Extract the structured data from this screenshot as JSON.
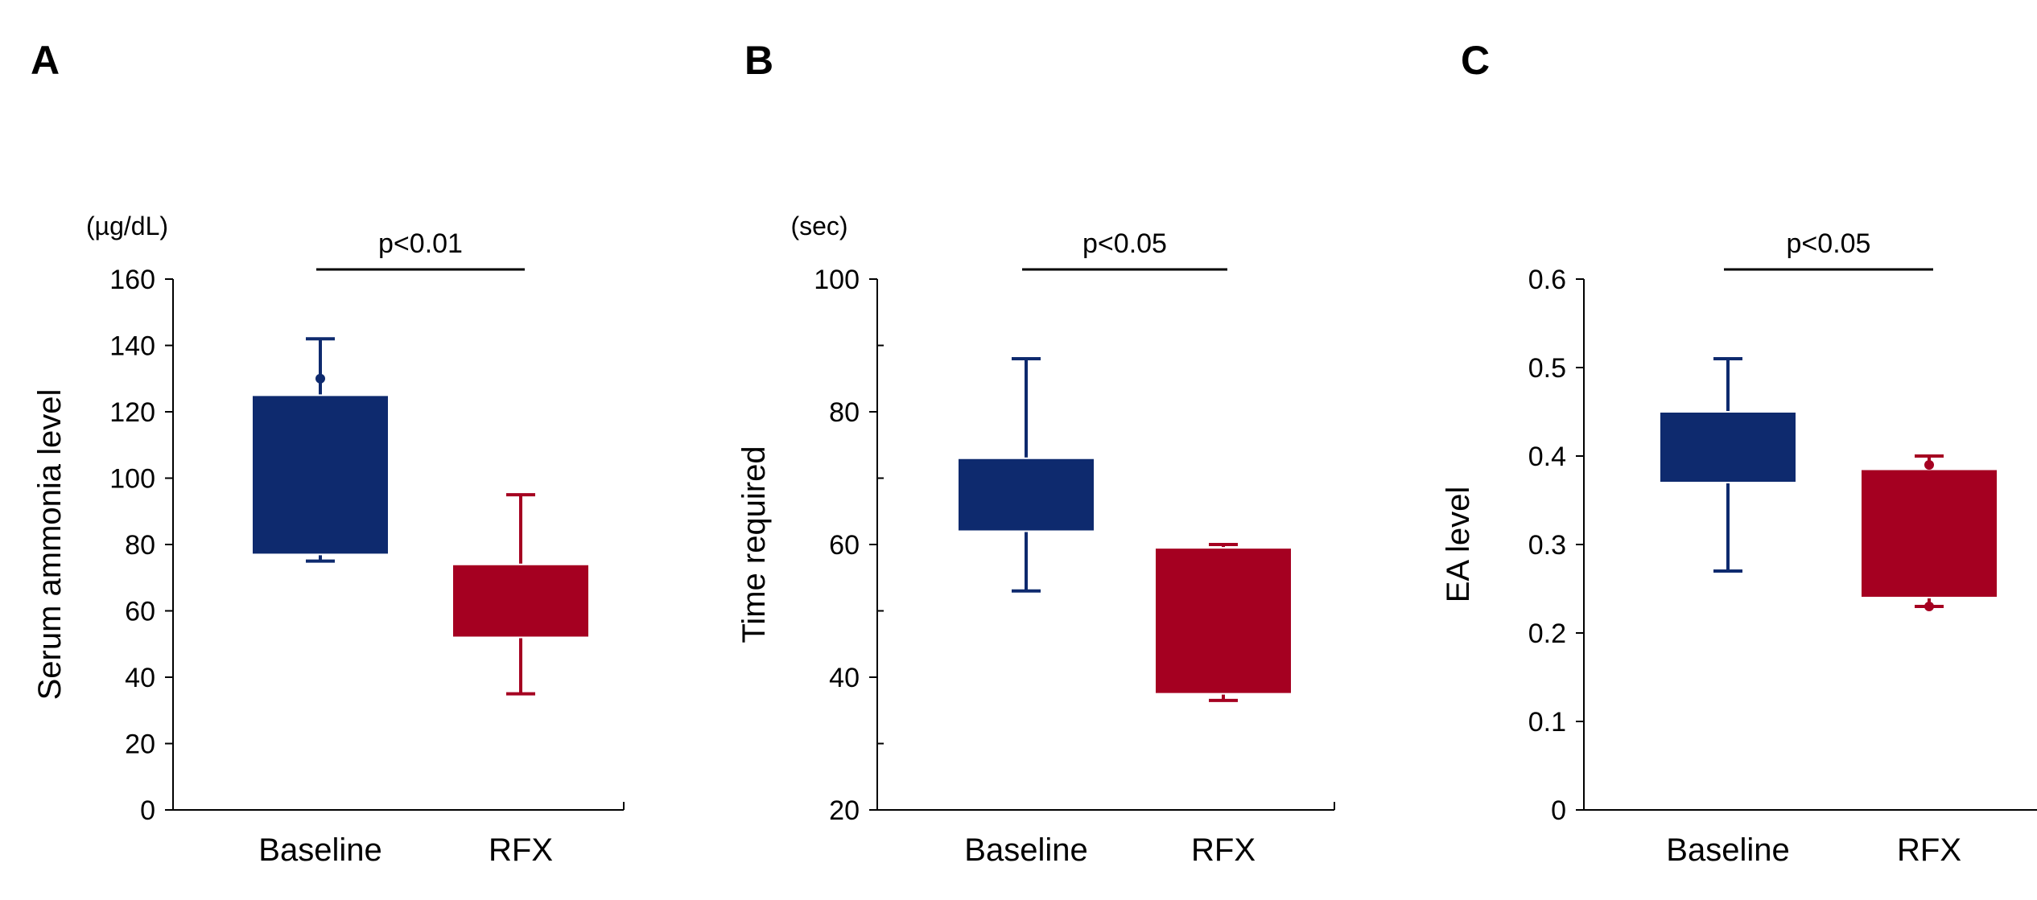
{
  "colors": {
    "baseline": "#0e2a6e",
    "rfx": "#a50021",
    "axis": "#000000"
  },
  "chart_data": [
    {
      "panel": "A",
      "type": "box",
      "unit_label": "(µg/dL)",
      "ylabel": "Serum ammonia level",
      "ylim": [
        0,
        160
      ],
      "yticks": [
        0,
        20,
        40,
        60,
        80,
        100,
        120,
        140,
        160
      ],
      "minor_ticks": false,
      "categories": [
        "Baseline",
        "RFX"
      ],
      "significance": "p<0.01",
      "boxes": [
        {
          "group": "Baseline",
          "color_key": "baseline",
          "whisker_low": 75,
          "q1": 77,
          "q3": 125,
          "whisker_high": 142,
          "points": [
            130
          ]
        },
        {
          "group": "RFX",
          "color_key": "rfx",
          "whisker_low": 35,
          "q1": 52,
          "q3": 74,
          "whisker_high": 95,
          "points": []
        }
      ]
    },
    {
      "panel": "B",
      "type": "box",
      "unit_label": "(sec)",
      "ylabel": "Time required",
      "ylim": [
        20,
        100
      ],
      "yticks": [
        20,
        40,
        60,
        80,
        100
      ],
      "minor_ticks": true,
      "categories": [
        "Baseline",
        "RFX"
      ],
      "significance": "p<0.05",
      "boxes": [
        {
          "group": "Baseline",
          "color_key": "baseline",
          "whisker_low": 53,
          "q1": 62,
          "q3": 73,
          "whisker_high": 88,
          "points": []
        },
        {
          "group": "RFX",
          "color_key": "rfx",
          "whisker_low": 36.5,
          "q1": 37.5,
          "q3": 59.5,
          "whisker_high": 60,
          "points": []
        }
      ]
    },
    {
      "panel": "C",
      "type": "box",
      "unit_label": "",
      "ylabel": "EA level",
      "ylim": [
        0,
        0.6
      ],
      "yticks": [
        0,
        0.1,
        0.2,
        0.3,
        0.4,
        0.5,
        0.6
      ],
      "minor_ticks": false,
      "categories": [
        "Baseline",
        "RFX"
      ],
      "significance": "p<0.05",
      "boxes": [
        {
          "group": "Baseline",
          "color_key": "baseline",
          "whisker_low": 0.27,
          "q1": 0.37,
          "q3": 0.45,
          "whisker_high": 0.51,
          "points": []
        },
        {
          "group": "RFX",
          "color_key": "rfx",
          "whisker_low": 0.23,
          "q1": 0.24,
          "q3": 0.385,
          "whisker_high": 0.4,
          "points": [
            0.39,
            0.23
          ]
        }
      ]
    }
  ]
}
